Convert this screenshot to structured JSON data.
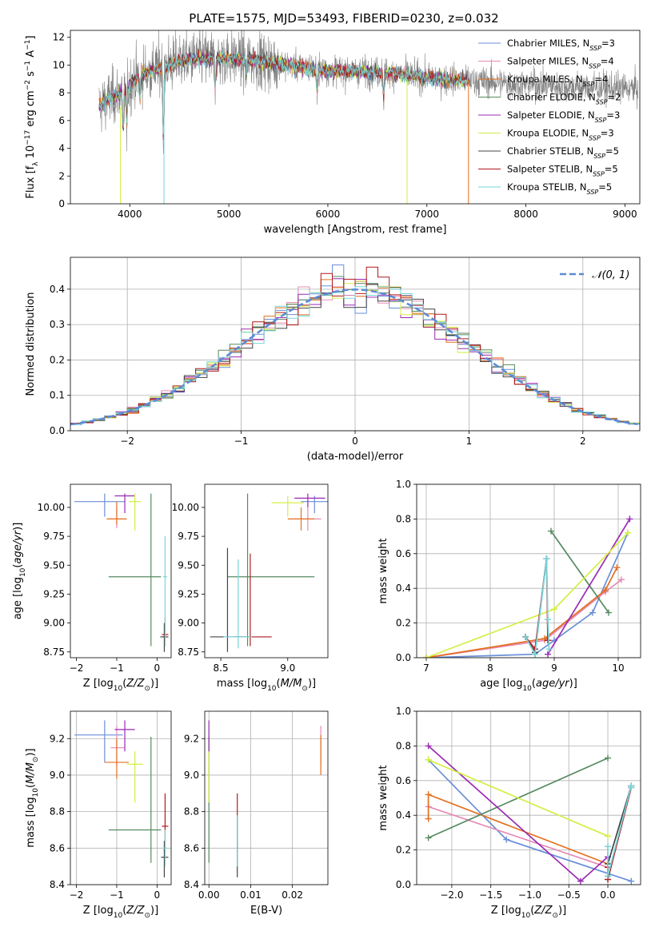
{
  "figure_title": "PLATE=1575, MJD=53493, FIBERID=0230, z=0.032",
  "series_styles": [
    {
      "name": "Chabrier MILES, N",
      "sub": "SSP",
      "suffix": "=3",
      "color": "#6a8fd8"
    },
    {
      "name": "Salpeter MILES, N",
      "sub": "SSP",
      "suffix": "=4",
      "color": "#e48bb5"
    },
    {
      "name": "Kroupa MILES, N",
      "sub": "SSP",
      "suffix": "=4",
      "color": "#e36f1f"
    },
    {
      "name": "Chabrier ELODIE, N",
      "sub": "SSP",
      "suffix": "=2",
      "color": "#568a60"
    },
    {
      "name": "Salpeter ELODIE, N",
      "sub": "SSP",
      "suffix": "=3",
      "color": "#9a2ab4"
    },
    {
      "name": "Kroupa ELODIE, N",
      "sub": "SSP",
      "suffix": "=3",
      "color": "#d4ee44"
    },
    {
      "name": "Chabrier STELIB, N",
      "sub": "SSP",
      "suffix": "=5",
      "color": "#444444"
    },
    {
      "name": "Salpeter STELIB, N",
      "sub": "SSP",
      "suffix": "=5",
      "color": "#b2191c"
    },
    {
      "name": "Kroupa STELIB, N",
      "sub": "SSP",
      "suffix": "=5",
      "color": "#76d5d9"
    }
  ],
  "chart_data": [
    {
      "id": "spectrum",
      "type": "line",
      "xlabel": "wavelength [Angstrom, rest frame]",
      "ylabel": "Flux [f_λ 10^-17 erg cm^-2 s^-1 A^-1]",
      "xlim": [
        3400,
        9150
      ],
      "ylim": [
        0,
        12.5
      ],
      "xticks": [
        4000,
        5000,
        6000,
        7000,
        8000,
        9000
      ],
      "yticks": [
        0,
        2,
        4,
        6,
        8,
        10,
        12
      ],
      "data_color": "#808080",
      "data_range": [
        3690,
        9130
      ],
      "model_range": [
        3690,
        7420
      ],
      "continuum": [
        [
          3690,
          7.0
        ],
        [
          3800,
          7.6
        ],
        [
          3950,
          8.2
        ],
        [
          4100,
          9.3
        ],
        [
          4300,
          9.8
        ],
        [
          4500,
          10.3
        ],
        [
          4700,
          10.5
        ],
        [
          5000,
          10.5
        ],
        [
          5300,
          10.3
        ],
        [
          5600,
          10.0
        ],
        [
          6000,
          9.6
        ],
        [
          6500,
          9.5
        ],
        [
          7000,
          9.1
        ],
        [
          7400,
          8.9
        ],
        [
          8000,
          8.6
        ],
        [
          8500,
          8.4
        ],
        [
          9130,
          8.3
        ]
      ]
    },
    {
      "id": "residual-histogram",
      "type": "line",
      "xlabel": "(data-model)/error",
      "ylabel": "Normed distribution",
      "xlim": [
        -2.5,
        2.5
      ],
      "ylim": [
        0,
        0.49
      ],
      "xticks": [
        -2,
        -1,
        0,
        1,
        2
      ],
      "yticks": [
        0,
        0.1,
        0.2,
        0.3,
        0.4
      ],
      "legend": "𝒩(0, 1)",
      "legend_position": "upper right",
      "curve_color": "#5b8bd6",
      "bin_width": 0.1
    },
    {
      "id": "age-vs-Z",
      "type": "scatter",
      "xlabel": "Z [log10(Z/Z⊙)]",
      "ylabel": "age  [log10(age/yr)]",
      "xlim": [
        -2.15,
        0.35
      ],
      "ylim": [
        8.7,
        10.2
      ],
      "xticks": [
        -2,
        -1,
        0
      ],
      "yticks": [
        8.75,
        9.0,
        9.25,
        9.5,
        9.75,
        10.0
      ],
      "points": [
        {
          "s": 0,
          "x": -1.3,
          "y": 10.05,
          "xlo": -2.05,
          "xhi": -0.8,
          "ylo": 9.92,
          "yhi": 10.12
        },
        {
          "s": 1,
          "x": -1.0,
          "y": 9.9,
          "xlo": -1.15,
          "xhi": -0.85,
          "ylo": 9.82,
          "yhi": 10.0
        },
        {
          "s": 2,
          "x": -1.0,
          "y": 9.9,
          "xlo": -1.25,
          "xhi": -0.75,
          "ylo": 9.85,
          "yhi": 10.05
        },
        {
          "s": 3,
          "x": -0.15,
          "y": 9.4,
          "xlo": -1.2,
          "xhi": 0.1,
          "ylo": 8.8,
          "yhi": 10.12
        },
        {
          "s": 4,
          "x": -0.8,
          "y": 10.1,
          "xlo": -1.05,
          "xhi": -0.55,
          "ylo": 9.95,
          "yhi": 10.12
        },
        {
          "s": 5,
          "x": -0.55,
          "y": 10.05,
          "xlo": -0.7,
          "xhi": -0.4,
          "ylo": 9.8,
          "yhi": 10.12
        },
        {
          "s": 6,
          "x": 0.18,
          "y": 8.88,
          "xlo": 0.08,
          "xhi": 0.28,
          "ylo": 8.75,
          "yhi": 9.0
        },
        {
          "s": 7,
          "x": 0.2,
          "y": 8.9,
          "xlo": 0.12,
          "xhi": 0.28,
          "ylo": 8.8,
          "yhi": 9.05
        },
        {
          "s": 8,
          "x": 0.2,
          "y": 9.4,
          "xlo": 0.15,
          "xhi": 0.25,
          "ylo": 8.8,
          "yhi": 9.75
        }
      ]
    },
    {
      "id": "age-vs-mass",
      "type": "scatter",
      "xlabel": "mass [log10(M/M⊙)]",
      "ylabel": "",
      "xlim": [
        8.38,
        9.3
      ],
      "ylim": [
        8.7,
        10.2
      ],
      "xticks": [
        8.5,
        9.0
      ],
      "yticks": [
        8.75,
        9.0,
        9.25,
        9.5,
        9.75,
        10.0
      ],
      "points": [
        {
          "s": 0,
          "x": 9.2,
          "y": 10.05,
          "xlo": 9.1,
          "xhi": 9.3,
          "ylo": 9.95,
          "yhi": 10.1
        },
        {
          "s": 1,
          "x": 9.15,
          "y": 9.9,
          "xlo": 9.05,
          "xhi": 9.25,
          "ylo": 9.8,
          "yhi": 10.0
        },
        {
          "s": 2,
          "x": 9.1,
          "y": 9.9,
          "xlo": 9.0,
          "xhi": 9.2,
          "ylo": 9.8,
          "yhi": 10.0
        },
        {
          "s": 3,
          "x": 8.7,
          "y": 9.4,
          "xlo": 8.55,
          "xhi": 9.2,
          "ylo": 8.8,
          "yhi": 10.12
        },
        {
          "s": 4,
          "x": 9.15,
          "y": 10.08,
          "xlo": 9.05,
          "xhi": 9.28,
          "ylo": 10.0,
          "yhi": 10.12
        },
        {
          "s": 5,
          "x": 9.0,
          "y": 10.04,
          "xlo": 8.88,
          "xhi": 9.12,
          "ylo": 9.92,
          "yhi": 10.1
        },
        {
          "s": 6,
          "x": 8.55,
          "y": 8.88,
          "xlo": 8.42,
          "xhi": 8.68,
          "ylo": 8.75,
          "yhi": 9.65
        },
        {
          "s": 7,
          "x": 8.72,
          "y": 8.88,
          "xlo": 8.6,
          "xhi": 8.88,
          "ylo": 8.8,
          "yhi": 9.6
        },
        {
          "s": 8,
          "x": 8.63,
          "y": 8.88,
          "xlo": 8.52,
          "xhi": 8.73,
          "ylo": 8.78,
          "yhi": 9.55
        }
      ]
    },
    {
      "id": "weight-vs-age",
      "type": "line",
      "xlabel": "age  [log10(age/yr)]",
      "ylabel": "mass weight",
      "xlim": [
        6.85,
        10.35
      ],
      "ylim": [
        0,
        1.0
      ],
      "xticks": [
        7,
        8,
        9,
        10
      ],
      "yticks": [
        0,
        0.2,
        0.4,
        0.6,
        0.8,
        1.0
      ],
      "series": [
        {
          "s": 0,
          "x": [
            7.0,
            8.7,
            9.0,
            9.6,
            10.15
          ],
          "y": [
            0.0,
            0.02,
            0.1,
            0.26,
            0.72
          ]
        },
        {
          "s": 1,
          "x": [
            7.0,
            8.85,
            9.8,
            10.05
          ],
          "y": [
            0.0,
            0.1,
            0.38,
            0.45
          ]
        },
        {
          "s": 2,
          "x": [
            7.0,
            8.85,
            9.8,
            9.98
          ],
          "y": [
            0.0,
            0.11,
            0.39,
            0.52
          ]
        },
        {
          "s": 3,
          "x": [
            8.95,
            9.85
          ],
          "y": [
            0.73,
            0.26
          ]
        },
        {
          "s": 4,
          "x": [
            8.9,
            10.18
          ],
          "y": [
            0.02,
            0.8
          ]
        },
        {
          "s": 5,
          "x": [
            7.0,
            9.0,
            10.15
          ],
          "y": [
            0.0,
            0.28,
            0.72
          ]
        },
        {
          "s": 6,
          "x": [
            8.55,
            8.7,
            8.88
          ],
          "y": [
            0.12,
            0.03,
            0.57
          ]
        },
        {
          "s": 7,
          "x": [
            8.55,
            8.7,
            8.88,
            8.9
          ],
          "y": [
            0.12,
            0.05,
            0.57,
            0.1
          ]
        },
        {
          "s": 8,
          "x": [
            8.55,
            8.7,
            8.88,
            8.9,
            8.92
          ],
          "y": [
            0.12,
            0.02,
            0.57,
            0.22,
            0.05
          ]
        }
      ]
    },
    {
      "id": "mass-vs-Z",
      "type": "scatter",
      "xlabel": "Z [log10(Z/Z⊙)]",
      "ylabel": "mass [log10(M/M⊙)]",
      "xlim": [
        -2.15,
        0.35
      ],
      "ylim": [
        8.4,
        9.35
      ],
      "xticks": [
        -2,
        -1,
        0
      ],
      "yticks": [
        8.4,
        8.6,
        8.8,
        9.0,
        9.2
      ],
      "points": [
        {
          "s": 0,
          "x": -1.3,
          "y": 9.22,
          "xlo": -2.05,
          "xhi": -0.85,
          "ylo": 9.07,
          "yhi": 9.3
        },
        {
          "s": 1,
          "x": -1.0,
          "y": 9.15,
          "xlo": -1.15,
          "xhi": -0.8,
          "ylo": 9.05,
          "yhi": 9.27
        },
        {
          "s": 2,
          "x": -1.0,
          "y": 9.07,
          "xlo": -1.3,
          "xhi": -0.7,
          "ylo": 8.98,
          "yhi": 9.2
        },
        {
          "s": 3,
          "x": -0.15,
          "y": 8.7,
          "xlo": -1.2,
          "xhi": 0.1,
          "ylo": 8.52,
          "yhi": 9.21
        },
        {
          "s": 4,
          "x": -0.8,
          "y": 9.25,
          "xlo": -1.05,
          "xhi": -0.55,
          "ylo": 9.13,
          "yhi": 9.3
        },
        {
          "s": 5,
          "x": -0.55,
          "y": 9.06,
          "xlo": -0.75,
          "xhi": -0.35,
          "ylo": 8.85,
          "yhi": 9.13
        },
        {
          "s": 6,
          "x": 0.18,
          "y": 8.55,
          "xlo": 0.1,
          "xhi": 0.28,
          "ylo": 8.44,
          "yhi": 8.64
        },
        {
          "s": 7,
          "x": 0.2,
          "y": 8.72,
          "xlo": 0.12,
          "xhi": 0.28,
          "ylo": 8.6,
          "yhi": 8.9
        },
        {
          "s": 8,
          "x": 0.2,
          "y": 8.6,
          "xlo": 0.15,
          "xhi": 0.25,
          "ylo": 8.5,
          "yhi": 8.7
        }
      ]
    },
    {
      "id": "mass-vs-EBV",
      "type": "scatter",
      "xlabel": "E(B-V)",
      "ylabel": "",
      "xlim": [
        -0.001,
        0.0285
      ],
      "ylim": [
        8.4,
        9.35
      ],
      "xticks": [
        0.0,
        0.01,
        0.02
      ],
      "yticks": [
        8.4,
        8.6,
        8.8,
        9.0,
        9.2
      ],
      "points": [
        {
          "s": 3,
          "x": 0.0,
          "y": 8.7,
          "ylo": 8.52,
          "yhi": 9.21
        },
        {
          "s": 4,
          "x": 0.0,
          "y": 9.22,
          "ylo": 9.13,
          "yhi": 9.3
        },
        {
          "s": 5,
          "x": 0.0,
          "y": 8.99,
          "ylo": 8.85,
          "yhi": 9.13
        },
        {
          "s": 6,
          "x": 0.0068,
          "y": 8.6,
          "ylo": 8.44,
          "yhi": 8.64
        },
        {
          "s": 7,
          "x": 0.0068,
          "y": 8.75,
          "ylo": 8.6,
          "yhi": 8.9
        },
        {
          "s": 8,
          "x": 0.0068,
          "y": 8.62,
          "ylo": 8.5,
          "yhi": 8.78
        },
        {
          "s": 1,
          "x": 0.0268,
          "y": 9.17,
          "ylo": 9.05,
          "yhi": 9.27
        },
        {
          "s": 2,
          "x": 0.0268,
          "y": 9.1,
          "ylo": 9.0,
          "yhi": 9.22
        }
      ]
    },
    {
      "id": "weight-vs-Z",
      "type": "line",
      "xlabel": "Z [log10(Z/Z⊙)]",
      "ylabel": "mass weight",
      "xlim": [
        -2.45,
        0.42
      ],
      "ylim": [
        0,
        1.0
      ],
      "xticks": [
        -2.0,
        -1.5,
        -1.0,
        -0.5,
        0.0
      ],
      "yticks": [
        0,
        0.2,
        0.4,
        0.6,
        0.8,
        1.0
      ],
      "series": [
        {
          "s": 0,
          "x": [
            -2.3,
            -1.3,
            0.3
          ],
          "y": [
            0.72,
            0.26,
            0.02
          ]
        },
        {
          "s": 1,
          "x": [
            -2.3,
            0.0
          ],
          "y": [
            0.45,
            0.1
          ]
        },
        {
          "s": 2,
          "x": [
            -2.3,
            -2.3,
            0.0
          ],
          "y": [
            0.38,
            0.52,
            0.12
          ]
        },
        {
          "s": 3,
          "x": [
            -2.3,
            0.0
          ],
          "y": [
            0.27,
            0.73
          ]
        },
        {
          "s": 4,
          "x": [
            -2.3,
            -0.35,
            0.0
          ],
          "y": [
            0.8,
            0.02,
            0.16
          ]
        },
        {
          "s": 5,
          "x": [
            -2.3,
            0.0
          ],
          "y": [
            0.72,
            0.28
          ]
        },
        {
          "s": 6,
          "x": [
            0.0,
            0.0,
            0.3
          ],
          "y": [
            0.05,
            0.12,
            0.57
          ]
        },
        {
          "s": 7,
          "x": [
            0.0,
            0.0,
            0.3
          ],
          "y": [
            0.1,
            0.03,
            0.56
          ]
        },
        {
          "s": 8,
          "x": [
            0.0,
            0.0,
            0.3,
            0.3
          ],
          "y": [
            0.22,
            0.05,
            0.57,
            0.56
          ]
        }
      ]
    }
  ]
}
